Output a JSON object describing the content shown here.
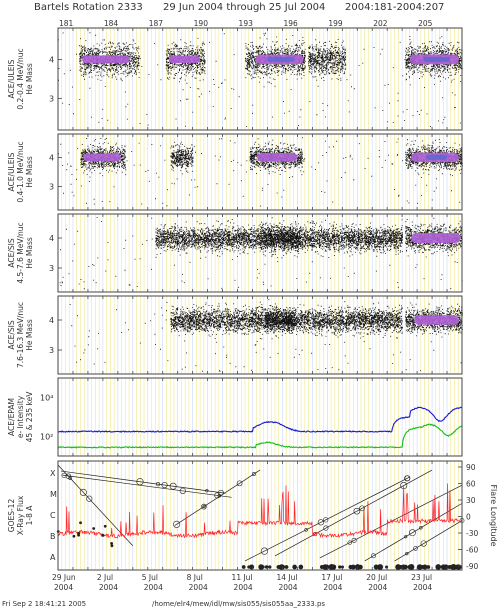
{
  "header": {
    "rotation": "Bartels Rotation 2333",
    "dates": "29 Jun 2004 through 25 Jul 2004",
    "doy_range": "2004:181-2004:207"
  },
  "footer": {
    "timestamp": "Fri Sep  2 18:41:21 2005",
    "path": "/home/elr4/mew/idl/mw/sis055/sis055aa_2333.ps"
  },
  "colors": {
    "frame": "#444444",
    "grid_yellow": "#f0e68c",
    "grid_blue": "#c6d9ff",
    "dots": "#111111",
    "band_purple": "#b060d8",
    "band_core": "#5a6ad0",
    "electrons_high": "#1a1ad0",
    "electrons_low": "#10c010",
    "xray": "#ff2020"
  },
  "chart_data": {
    "type": "scatter",
    "x_axis": {
      "range": [
        181,
        208
      ],
      "top_ticks": [
        "181",
        "184",
        "187",
        "190",
        "193",
        "196",
        "199",
        "202",
        "205"
      ],
      "bottom_dates": [
        {
          "day": "29 Jun",
          "year": "2004"
        },
        {
          "day": "2 Jul",
          "year": "2004"
        },
        {
          "day": "5 Jul",
          "year": "2004"
        },
        {
          "day": "8 Jul",
          "year": "2004"
        },
        {
          "day": "11 Jul",
          "year": "2004"
        },
        {
          "day": "14 Jul",
          "year": "2004"
        },
        {
          "day": "17 Jul",
          "year": "2004"
        },
        {
          "day": "20 Jul",
          "year": "2004"
        },
        {
          "day": "23 Jul",
          "year": "2004"
        }
      ]
    },
    "panels": [
      {
        "ylabel": [
          "ACE/ULEIS",
          "0.2-0.4 MeV/nuc",
          "He Mass"
        ],
        "yticks": [
          "4",
          "3"
        ],
        "ylim": [
          2.2,
          4.8
        ]
      },
      {
        "ylabel": [
          "ACE/ULEIS",
          "0.4-1.0 MeV/nuc",
          "He Mass"
        ],
        "yticks": [
          "4",
          "3"
        ],
        "ylim": [
          2.2,
          4.8
        ]
      },
      {
        "ylabel": [
          "ACE/SIS",
          "4.5-7.6 MeV/nuc",
          "He Mass"
        ],
        "yticks": [
          "4",
          "3"
        ],
        "ylim": [
          2.2,
          4.8
        ]
      },
      {
        "ylabel": [
          "ACE/SIS",
          "7.6-16.3 MeV/nuc",
          "He Mass"
        ],
        "yticks": [
          "4",
          "3"
        ],
        "ylim": [
          2.2,
          4.8
        ]
      },
      {
        "ylabel": [
          "ACE/EPAM",
          "e- Intensity",
          "45 & 235 keV"
        ],
        "yticks": [
          "10⁴",
          "10²"
        ],
        "ylog": true,
        "ylim": [
          10,
          100000
        ]
      },
      {
        "ylabel": [
          "GOES-12",
          "X-Ray Flux",
          "1-8 A"
        ],
        "yticks": [
          "X",
          "M",
          "C",
          "B",
          "A"
        ],
        "right_label": "Flare Longitude",
        "right_ticks": [
          "90",
          "60",
          "30",
          "0",
          "-30",
          "-60",
          "-90"
        ]
      }
    ]
  }
}
